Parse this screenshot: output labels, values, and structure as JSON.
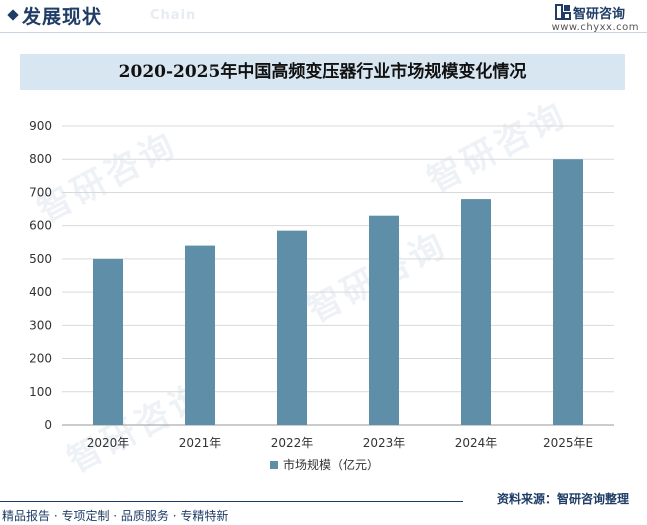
{
  "header": {
    "title": "发展现状",
    "subtitle": "Chain",
    "logo_text": "智研咨询",
    "logo_url": "www.chyxx.com"
  },
  "watermark": "智研咨询",
  "chart_data": {
    "type": "bar",
    "title": "2020-2025年中国高频变压器行业市场规模变化情况",
    "categories": [
      "2020年",
      "2021年",
      "2022年",
      "2023年",
      "2024年",
      "2025年E"
    ],
    "series": [
      {
        "name": "市场规模（亿元）",
        "values": [
          500,
          540,
          585,
          630,
          680,
          800
        ]
      }
    ],
    "ylim": [
      0,
      900
    ],
    "yticks": [
      0,
      100,
      200,
      300,
      400,
      500,
      600,
      700,
      800,
      900
    ],
    "xlabel": "",
    "ylabel": "",
    "grid": true,
    "legend": "bottom",
    "bar_color": "#5f8fa8"
  },
  "footer": {
    "left": "精品报告 · 专项定制 · 品质服务 · 专精特新",
    "right": "资料来源：智研咨询整理"
  }
}
